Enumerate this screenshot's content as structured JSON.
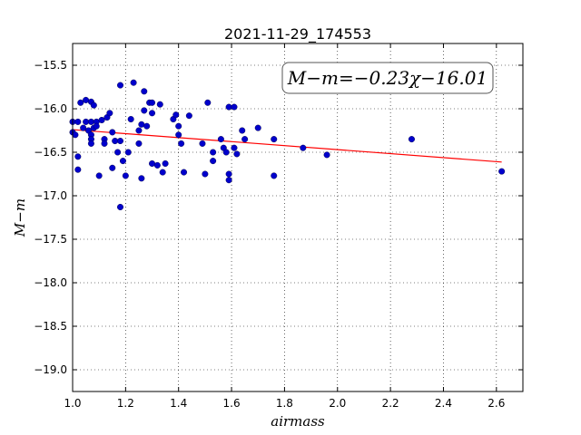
{
  "chart_data": {
    "type": "scatter",
    "title": "2021-11-29_174553",
    "xlabel": "airmass",
    "ylabel": "M−m",
    "xlim": [
      1.0,
      2.7
    ],
    "ylim": [
      -19.25,
      -15.25
    ],
    "y_inverted": true,
    "grid": true,
    "grid_style": "dotted",
    "x_ticks": [
      1.0,
      1.2,
      1.4,
      1.6,
      1.8,
      2.0,
      2.2,
      2.4,
      2.6
    ],
    "x_tick_labels": [
      "1.0",
      "1.2",
      "1.4",
      "1.6",
      "1.8",
      "2.0",
      "2.2",
      "2.4",
      "2.6"
    ],
    "y_ticks": [
      -15.5,
      -16.0,
      -16.5,
      -17.0,
      -17.5,
      -18.0,
      -18.5,
      -19.0
    ],
    "y_tick_labels": [
      "−15.5",
      "−16.0",
      "−16.5",
      "−17.0",
      "−17.5",
      "−18.0",
      "−18.5",
      "−19.0"
    ],
    "annotation": "M−m=−0.23χ−16.01",
    "fit": {
      "slope": -0.23,
      "intercept": -16.01,
      "x_range": [
        1.0,
        2.62
      ],
      "color": "#ff0000"
    },
    "point_color": "#0000cc",
    "points": [
      [
        1.0,
        -16.15
      ],
      [
        1.0,
        -16.27
      ],
      [
        1.01,
        -16.3
      ],
      [
        1.02,
        -16.15
      ],
      [
        1.02,
        -16.55
      ],
      [
        1.02,
        -16.7
      ],
      [
        1.03,
        -15.93
      ],
      [
        1.04,
        -16.22
      ],
      [
        1.05,
        -15.9
      ],
      [
        1.05,
        -16.15
      ],
      [
        1.06,
        -16.25
      ],
      [
        1.07,
        -15.92
      ],
      [
        1.07,
        -16.15
      ],
      [
        1.07,
        -16.3
      ],
      [
        1.07,
        -16.35
      ],
      [
        1.07,
        -16.4
      ],
      [
        1.08,
        -15.96
      ],
      [
        1.08,
        -16.22
      ],
      [
        1.09,
        -16.15
      ],
      [
        1.09,
        -16.2
      ],
      [
        1.1,
        -16.77
      ],
      [
        1.11,
        -16.13
      ],
      [
        1.12,
        -16.35
      ],
      [
        1.12,
        -16.4
      ],
      [
        1.13,
        -16.1
      ],
      [
        1.14,
        -16.05
      ],
      [
        1.15,
        -16.27
      ],
      [
        1.15,
        -16.68
      ],
      [
        1.16,
        -16.37
      ],
      [
        1.17,
        -16.5
      ],
      [
        1.18,
        -15.73
      ],
      [
        1.18,
        -16.37
      ],
      [
        1.18,
        -17.13
      ],
      [
        1.19,
        -16.6
      ],
      [
        1.2,
        -16.77
      ],
      [
        1.21,
        -16.5
      ],
      [
        1.22,
        -16.12
      ],
      [
        1.23,
        -15.7
      ],
      [
        1.25,
        -16.25
      ],
      [
        1.25,
        -16.4
      ],
      [
        1.26,
        -16.18
      ],
      [
        1.26,
        -16.8
      ],
      [
        1.27,
        -15.8
      ],
      [
        1.27,
        -16.02
      ],
      [
        1.28,
        -16.2
      ],
      [
        1.29,
        -15.93
      ],
      [
        1.3,
        -15.93
      ],
      [
        1.3,
        -16.05
      ],
      [
        1.3,
        -16.63
      ],
      [
        1.32,
        -16.65
      ],
      [
        1.33,
        -15.95
      ],
      [
        1.34,
        -16.73
      ],
      [
        1.35,
        -16.63
      ],
      [
        1.38,
        -16.12
      ],
      [
        1.39,
        -16.07
      ],
      [
        1.4,
        -16.2
      ],
      [
        1.4,
        -16.3
      ],
      [
        1.41,
        -16.4
      ],
      [
        1.42,
        -16.73
      ],
      [
        1.44,
        -16.08
      ],
      [
        1.49,
        -16.4
      ],
      [
        1.5,
        -16.75
      ],
      [
        1.51,
        -15.93
      ],
      [
        1.53,
        -16.5
      ],
      [
        1.53,
        -16.6
      ],
      [
        1.56,
        -16.35
      ],
      [
        1.57,
        -16.45
      ],
      [
        1.58,
        -16.5
      ],
      [
        1.59,
        -15.98
      ],
      [
        1.59,
        -16.75
      ],
      [
        1.59,
        -16.82
      ],
      [
        1.61,
        -15.98
      ],
      [
        1.61,
        -16.45
      ],
      [
        1.62,
        -16.52
      ],
      [
        1.64,
        -16.25
      ],
      [
        1.65,
        -16.35
      ],
      [
        1.7,
        -16.22
      ],
      [
        1.76,
        -16.35
      ],
      [
        1.76,
        -16.77
      ],
      [
        1.87,
        -16.45
      ],
      [
        1.96,
        -16.53
      ],
      [
        2.28,
        -16.35
      ],
      [
        2.62,
        -16.72
      ]
    ]
  }
}
